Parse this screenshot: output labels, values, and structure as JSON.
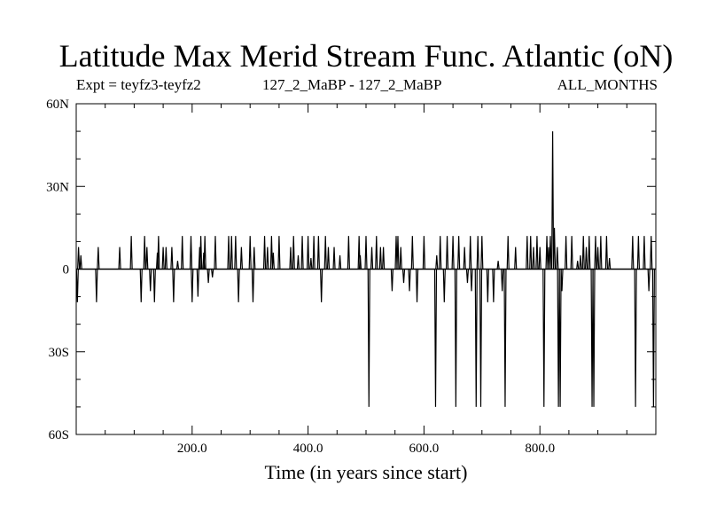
{
  "chart_data": {
    "type": "line",
    "title": "Latitude Max Merid Stream Func. Atlantic (oN)",
    "subtitle_left": "Expt = teyfz3-teyfz2",
    "subtitle_center": "127_2_MaBP - 127_2_MaBP",
    "subtitle_right": "ALL_MONTHS",
    "xlabel": "Time (in years since start)",
    "ylabel": "",
    "xlim": [
      0,
      1000
    ],
    "ylim": [
      -60,
      60
    ],
    "x_ticks": [
      {
        "value": 200,
        "label": "200.0"
      },
      {
        "value": 400,
        "label": "400.0"
      },
      {
        "value": 600,
        "label": "600.0"
      },
      {
        "value": 800,
        "label": "800.0"
      }
    ],
    "y_ticks": [
      {
        "value": 60,
        "label": "60N"
      },
      {
        "value": 30,
        "label": "30N"
      },
      {
        "value": 0,
        "label": "0"
      },
      {
        "value": -30,
        "label": "30S"
      },
      {
        "value": -60,
        "label": "60S"
      }
    ],
    "baseline": 0,
    "spikes": [
      [
        2,
        -12
      ],
      [
        4,
        8
      ],
      [
        8,
        5
      ],
      [
        35,
        -12
      ],
      [
        38,
        8
      ],
      [
        75,
        8
      ],
      [
        95,
        12
      ],
      [
        112,
        -12
      ],
      [
        118,
        12
      ],
      [
        122,
        8
      ],
      [
        128,
        -8
      ],
      [
        135,
        -12
      ],
      [
        140,
        6
      ],
      [
        142,
        12
      ],
      [
        150,
        8
      ],
      [
        155,
        8
      ],
      [
        165,
        8
      ],
      [
        168,
        -12
      ],
      [
        175,
        3
      ],
      [
        183,
        12
      ],
      [
        198,
        12
      ],
      [
        200,
        -12
      ],
      [
        210,
        -10
      ],
      [
        213,
        8
      ],
      [
        215,
        12
      ],
      [
        220,
        6
      ],
      [
        222,
        12
      ],
      [
        228,
        -5
      ],
      [
        235,
        -3
      ],
      [
        240,
        12
      ],
      [
        263,
        12
      ],
      [
        268,
        12
      ],
      [
        275,
        12
      ],
      [
        280,
        -12
      ],
      [
        285,
        8
      ],
      [
        300,
        12
      ],
      [
        305,
        -12
      ],
      [
        307,
        8
      ],
      [
        325,
        12
      ],
      [
        330,
        8
      ],
      [
        337,
        12
      ],
      [
        340,
        6
      ],
      [
        350,
        12
      ],
      [
        370,
        8
      ],
      [
        375,
        12
      ],
      [
        383,
        5
      ],
      [
        390,
        12
      ],
      [
        400,
        12
      ],
      [
        405,
        4
      ],
      [
        410,
        12
      ],
      [
        418,
        12
      ],
      [
        423,
        -12
      ],
      [
        430,
        12
      ],
      [
        435,
        8
      ],
      [
        445,
        8
      ],
      [
        455,
        5
      ],
      [
        470,
        12
      ],
      [
        488,
        12
      ],
      [
        490,
        5
      ],
      [
        500,
        12
      ],
      [
        505,
        -50
      ],
      [
        510,
        8
      ],
      [
        518,
        12
      ],
      [
        525,
        8
      ],
      [
        530,
        8
      ],
      [
        545,
        -8
      ],
      [
        552,
        12
      ],
      [
        555,
        12
      ],
      [
        560,
        8
      ],
      [
        565,
        -5
      ],
      [
        575,
        -8
      ],
      [
        580,
        12
      ],
      [
        588,
        -12
      ],
      [
        600,
        12
      ],
      [
        620,
        -50
      ],
      [
        622,
        5
      ],
      [
        628,
        12
      ],
      [
        635,
        -12
      ],
      [
        640,
        12
      ],
      [
        650,
        12
      ],
      [
        655,
        -50
      ],
      [
        660,
        12
      ],
      [
        670,
        8
      ],
      [
        675,
        -5
      ],
      [
        680,
        12
      ],
      [
        682,
        -8
      ],
      [
        690,
        -50
      ],
      [
        693,
        12
      ],
      [
        698,
        -50
      ],
      [
        700,
        12
      ],
      [
        710,
        -12
      ],
      [
        720,
        -12
      ],
      [
        728,
        3
      ],
      [
        735,
        -8
      ],
      [
        740,
        -50
      ],
      [
        745,
        12
      ],
      [
        758,
        8
      ],
      [
        778,
        12
      ],
      [
        784,
        12
      ],
      [
        789,
        8
      ],
      [
        795,
        12
      ],
      [
        800,
        8
      ],
      [
        807,
        -50
      ],
      [
        812,
        12
      ],
      [
        815,
        8
      ],
      [
        818,
        12
      ],
      [
        822,
        50
      ],
      [
        825,
        15
      ],
      [
        830,
        8
      ],
      [
        832,
        -50
      ],
      [
        835,
        -50
      ],
      [
        838,
        -8
      ],
      [
        845,
        12
      ],
      [
        855,
        12
      ],
      [
        865,
        3
      ],
      [
        870,
        5
      ],
      [
        875,
        12
      ],
      [
        880,
        8
      ],
      [
        885,
        12
      ],
      [
        890,
        -50
      ],
      [
        893,
        -50
      ],
      [
        896,
        12
      ],
      [
        900,
        8
      ],
      [
        905,
        12
      ],
      [
        915,
        12
      ],
      [
        920,
        4
      ],
      [
        960,
        12
      ],
      [
        965,
        -50
      ],
      [
        970,
        12
      ],
      [
        980,
        12
      ],
      [
        988,
        -8
      ],
      [
        992,
        12
      ],
      [
        996,
        -50
      ]
    ]
  }
}
